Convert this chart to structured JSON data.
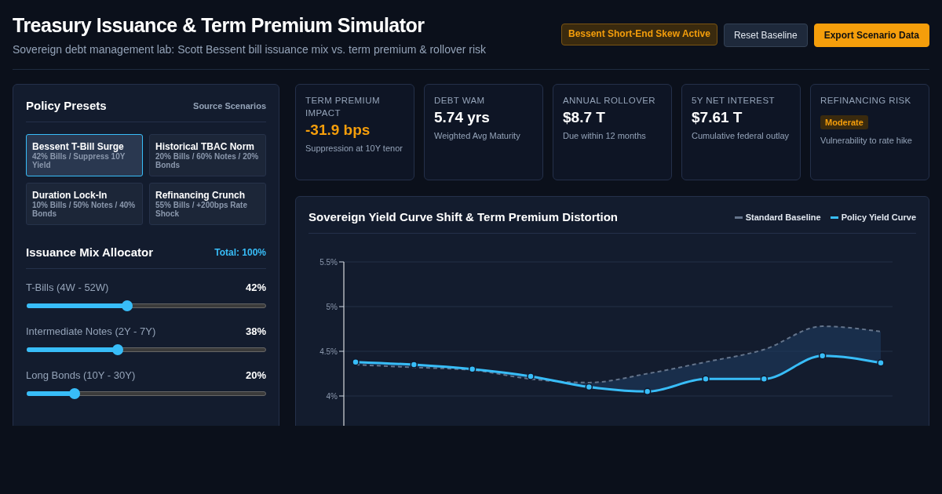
{
  "chart_data": [
    {
      "type": "other",
      "title": "Treasury Issuance & Term Premium Simulator",
      "subtitle": "Sovereign debt management lab: Scott Bessent bill issuance mix vs. term premium & rollover risk",
      "annotations": [
        "Bessent Short-End Skew Active",
        "Reset Baseline",
        "Export Scenario Data"
      ]
    },
    {
      "type": "other",
      "title": "Policy Presets",
      "annotations": [
        "Source Scenarios",
        "Bessent T-Bill Surge",
        "42% Bills / Suppress 10Y Yield",
        "Historical TBAC Norm",
        "20% Bills / 60% Notes / 20% Bonds",
        "Duration Lock-In",
        "10% Bills / 50% Notes / 40% Bonds",
        "Refinancing Crunch",
        "55% Bills / +200bps Rate Shock",
        "Issuance Mix Allocator",
        "Total: 100%"
      ],
      "categories": [
        "T-Bills (4W - 52W)",
        "Intermediate Notes (2Y - 7Y)",
        "Long Bonds (10Y - 30Y)"
      ],
      "values": [
        42,
        38,
        20
      ],
      "value_labels": [
        "42%",
        "38%",
        "20%"
      ]
    },
    {
      "type": "other",
      "title": "TERM PREMIUM IMPACT",
      "annotations": [
        "-31.9 bps",
        "Suppression at 10Y tenor"
      ]
    },
    {
      "type": "other",
      "title": "DEBT WAM",
      "annotations": [
        "5.74 yrs",
        "Weighted Avg Maturity"
      ]
    },
    {
      "type": "other",
      "title": "ANNUAL ROLLOVER",
      "annotations": [
        "$8.7 T",
        "Due within 12 months"
      ]
    },
    {
      "type": "other",
      "title": "5Y NET INTEREST",
      "annotations": [
        "$7.61 T",
        "Cumulative federal outlay"
      ]
    },
    {
      "type": "other",
      "title": "REFINANCING RISK",
      "annotations": [
        "Moderate",
        "Vulnerability to rate hike"
      ]
    },
    {
      "type": "line",
      "title": "Sovereign Yield Curve Shift & Term Premium Distortion",
      "categories": [
        null,
        null,
        null,
        null,
        null,
        null,
        null,
        null,
        null,
        null
      ],
      "ylim": [
        3.5,
        5.5
      ],
      "yticks": [
        {
          "value": 4,
          "label": "4%"
        },
        {
          "value": 4.5,
          "label": "4.5%"
        },
        {
          "value": 5,
          "label": "5%"
        },
        {
          "value": 5.5,
          "label": "5.5%"
        }
      ],
      "grid": "y",
      "legend": "top right",
      "series": [
        {
          "name": "Standard Baseline",
          "color": "#64748b",
          "line_style": "dashed",
          "marker": "none",
          "values": [
            4.35,
            4.32,
            4.29,
            4.19,
            4.15,
            4.25,
            4.38,
            4.52,
            4.78,
            4.72
          ],
          "lower": [
            4.38,
            4.35,
            4.3,
            4.22,
            4.1,
            4.05,
            4.19,
            4.19,
            4.45,
            4.37
          ],
          "upper": [
            4.35,
            4.32,
            4.29,
            4.19,
            4.15,
            4.25,
            4.38,
            4.52,
            4.78,
            4.72
          ]
        },
        {
          "name": "Policy Yield Curve",
          "color": "#38bdf8",
          "line_style": "solid",
          "marker": "circle",
          "values": [
            4.38,
            4.35,
            4.3,
            4.22,
            4.1,
            4.05,
            4.19,
            4.19,
            4.45,
            4.37
          ]
        }
      ]
    }
  ]
}
